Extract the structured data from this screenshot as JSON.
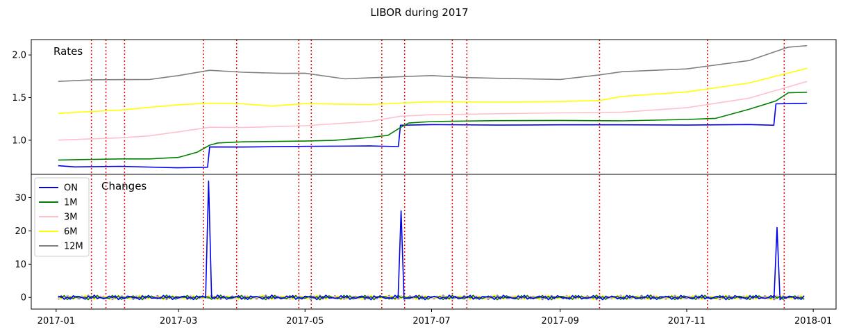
{
  "chart_data": {
    "type": "line",
    "title": "LIBOR during 2017",
    "x_ticks": [
      "2017-01",
      "2017-03",
      "2017-05",
      "2017-07",
      "2017-09",
      "2017-11",
      "2018-01"
    ],
    "xlim": [
      "2016-12-20",
      "2018-01-12"
    ],
    "event_dates": [
      "2017-01-18",
      "2017-01-25",
      "2017-02-03",
      "2017-03-13",
      "2017-03-29",
      "2017-04-28",
      "2017-05-04",
      "2017-06-07",
      "2017-06-18",
      "2017-07-11",
      "2017-07-18",
      "2017-09-20",
      "2017-11-11",
      "2017-12-18"
    ],
    "event_color": "#ee0000",
    "panels": [
      {
        "label": "Rates",
        "ylim": [
          0.6,
          2.18
        ],
        "y_ticks": [
          "1.0",
          "1.5",
          "2.0"
        ],
        "y_tick_values": [
          1.0,
          1.5,
          2.0
        ],
        "series": [
          {
            "name": "ON",
            "color": "#0000ee",
            "dates": [
              "2017-01-02",
              "2017-01-10",
              "2017-02-01",
              "2017-03-01",
              "2017-03-15",
              "2017-03-16",
              "2017-04-01",
              "2017-05-01",
              "2017-06-01",
              "2017-06-15",
              "2017-06-16",
              "2017-07-01",
              "2017-08-01",
              "2017-09-01",
              "2017-10-01",
              "2017-11-01",
              "2017-12-01",
              "2017-12-13",
              "2017-12-14",
              "2017-12-29"
            ],
            "values": [
              0.7,
              0.69,
              0.69,
              0.68,
              0.68,
              0.92,
              0.92,
              0.93,
              0.93,
              0.93,
              1.18,
              1.18,
              1.18,
              1.18,
              1.18,
              1.18,
              1.18,
              1.18,
              1.43,
              1.43
            ]
          },
          {
            "name": "1M",
            "color": "#008000",
            "dates": [
              "2017-01-02",
              "2017-02-01",
              "2017-02-15",
              "2017-03-01",
              "2017-03-10",
              "2017-03-16",
              "2017-03-20",
              "2017-04-01",
              "2017-05-01",
              "2017-05-15",
              "2017-06-01",
              "2017-06-10",
              "2017-06-16",
              "2017-06-20",
              "2017-07-01",
              "2017-08-01",
              "2017-09-01",
              "2017-10-01",
              "2017-11-01",
              "2017-11-15",
              "2017-12-01",
              "2017-12-14",
              "2017-12-20",
              "2017-12-29"
            ],
            "values": [
              0.77,
              0.78,
              0.78,
              0.8,
              0.86,
              0.94,
              0.97,
              0.98,
              0.99,
              1.0,
              1.03,
              1.06,
              1.15,
              1.2,
              1.22,
              1.23,
              1.23,
              1.23,
              1.24,
              1.26,
              1.36,
              1.46,
              1.56,
              1.56
            ]
          },
          {
            "name": "3M",
            "color": "#ffc0cb",
            "dates": [
              "2017-01-02",
              "2017-02-01",
              "2017-02-15",
              "2017-03-01",
              "2017-03-16",
              "2017-04-01",
              "2017-05-01",
              "2017-06-01",
              "2017-06-16",
              "2017-07-01",
              "2017-08-01",
              "2017-09-01",
              "2017-10-01",
              "2017-11-01",
              "2017-12-01",
              "2017-12-29"
            ],
            "values": [
              1.0,
              1.03,
              1.05,
              1.1,
              1.15,
              1.15,
              1.17,
              1.22,
              1.28,
              1.3,
              1.31,
              1.32,
              1.33,
              1.38,
              1.49,
              1.69
            ]
          },
          {
            "name": "6M",
            "color": "#ffff00",
            "dates": [
              "2017-01-02",
              "2017-02-01",
              "2017-03-01",
              "2017-03-16",
              "2017-04-01",
              "2017-04-15",
              "2017-05-01",
              "2017-06-01",
              "2017-07-01",
              "2017-08-01",
              "2017-09-01",
              "2017-09-20",
              "2017-10-01",
              "2017-11-01",
              "2017-12-01",
              "2017-12-29"
            ],
            "values": [
              1.32,
              1.35,
              1.42,
              1.43,
              1.43,
              1.4,
              1.43,
              1.42,
              1.45,
              1.45,
              1.45,
              1.47,
              1.51,
              1.57,
              1.67,
              1.84
            ]
          },
          {
            "name": "12M",
            "color": "#808080",
            "dates": [
              "2017-01-02",
              "2017-01-20",
              "2017-02-15",
              "2017-03-01",
              "2017-03-16",
              "2017-04-01",
              "2017-04-20",
              "2017-05-01",
              "2017-05-20",
              "2017-06-01",
              "2017-07-01",
              "2017-07-20",
              "2017-08-01",
              "2017-09-01",
              "2017-09-20",
              "2017-10-01",
              "2017-11-01",
              "2017-12-01",
              "2017-12-20",
              "2017-12-29"
            ],
            "values": [
              1.69,
              1.71,
              1.71,
              1.76,
              1.82,
              1.8,
              1.78,
              1.79,
              1.72,
              1.73,
              1.76,
              1.73,
              1.73,
              1.71,
              1.77,
              1.8,
              1.84,
              1.93,
              2.09,
              2.11
            ]
          }
        ]
      },
      {
        "label": "Changes",
        "ylim": [
          -3.5,
          37
        ],
        "y_ticks": [
          "0",
          "10",
          "20",
          "30"
        ],
        "y_tick_values": [
          0,
          10,
          20,
          30
        ],
        "spikes": [
          {
            "series": "ON",
            "date": "2017-03-16",
            "value": 35
          },
          {
            "series": "ON",
            "date": "2017-06-16",
            "value": 26
          },
          {
            "series": "ON",
            "date": "2017-12-14",
            "value": 21
          }
        ],
        "noise_amplitude": 0.8
      }
    ],
    "legend": {
      "placement": "upper-left of lower panel",
      "entries": [
        "ON",
        "1M",
        "3M",
        "6M",
        "12M"
      ]
    }
  }
}
